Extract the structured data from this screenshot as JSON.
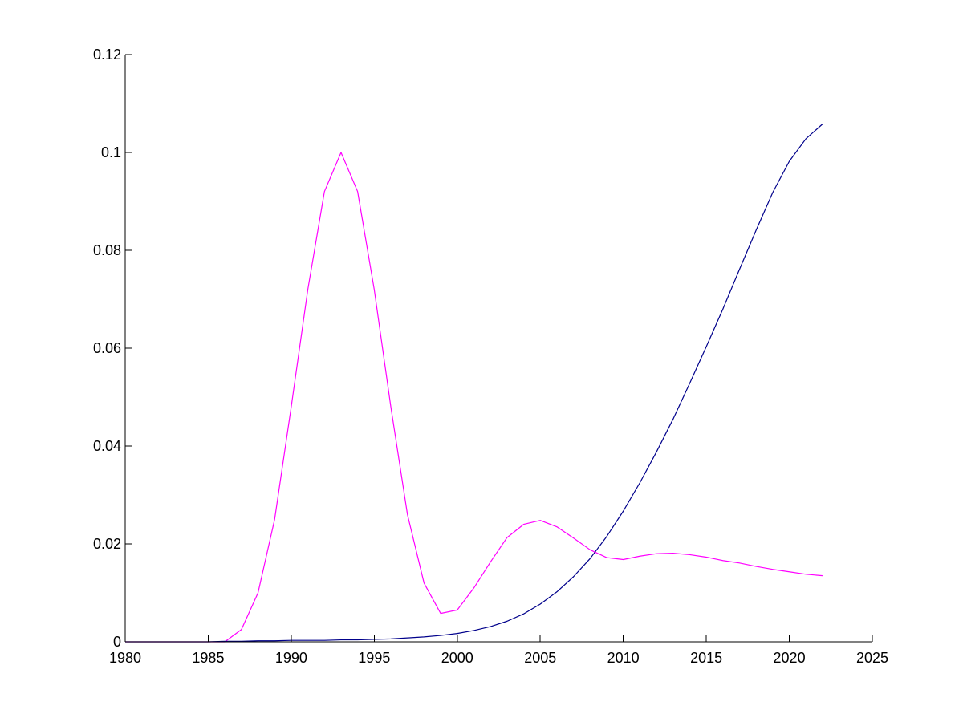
{
  "chart_data": {
    "type": "line",
    "title": "",
    "xlabel": "",
    "ylabel": "",
    "xlim": [
      1980,
      2025
    ],
    "ylim": [
      0,
      0.12
    ],
    "grid": false,
    "box": false,
    "x_ticks": [
      1980,
      1985,
      1990,
      1995,
      2000,
      2005,
      2010,
      2015,
      2020,
      2025
    ],
    "x_tick_labels": [
      "1980",
      "1985",
      "1990",
      "1995",
      "2000",
      "2005",
      "2010",
      "2015",
      "2020",
      "2025"
    ],
    "y_ticks": [
      0,
      0.02,
      0.04,
      0.06,
      0.08,
      0.1,
      0.12
    ],
    "y_tick_labels": [
      "0",
      "0.02",
      "0.04",
      "0.06",
      "0.08",
      "0.1",
      "0.12"
    ],
    "series": [
      {
        "color": "#ff00ff",
        "x": [
          1980,
          1981,
          1982,
          1983,
          1984,
          1985,
          1986,
          1987,
          1988,
          1989,
          1990,
          1991,
          1992,
          1993,
          1994,
          1995,
          1996,
          1997,
          1998,
          1999,
          2000,
          2001,
          2002,
          2003,
          2004,
          2005,
          2006,
          2007,
          2008,
          2009,
          2010,
          2011,
          2012,
          2013,
          2014,
          2015,
          2016,
          2017,
          2018,
          2019,
          2020,
          2021,
          2022
        ],
        "values": [
          0,
          0,
          0,
          0,
          0,
          0,
          0,
          0.0025,
          0.01,
          0.025,
          0.048,
          0.072,
          0.092,
          0.1,
          0.092,
          0.072,
          0.048,
          0.026,
          0.012,
          0.0058,
          0.0065,
          0.011,
          0.0163,
          0.0213,
          0.024,
          0.0248,
          0.0235,
          0.0212,
          0.0188,
          0.0172,
          0.0168,
          0.0175,
          0.018,
          0.0181,
          0.0178,
          0.0173,
          0.0166,
          0.0161,
          0.0154,
          0.0148,
          0.0143,
          0.0138,
          0.0135
        ]
      },
      {
        "color": "#00008b",
        "x": [
          1980,
          1981,
          1982,
          1983,
          1984,
          1985,
          1986,
          1987,
          1988,
          1989,
          1990,
          1991,
          1992,
          1993,
          1994,
          1995,
          1996,
          1997,
          1998,
          1999,
          2000,
          2001,
          2002,
          2003,
          2004,
          2005,
          2006,
          2007,
          2008,
          2009,
          2010,
          2011,
          2012,
          2013,
          2014,
          2015,
          2016,
          2017,
          2018,
          2019,
          2020,
          2021,
          2022
        ],
        "values": [
          0,
          0,
          0,
          0,
          0,
          0,
          0.0001,
          0.0001,
          0.0002,
          0.0002,
          0.0003,
          0.0003,
          0.0003,
          0.0004,
          0.0004,
          0.0005,
          0.0006,
          0.0008,
          0.001,
          0.0013,
          0.0017,
          0.0023,
          0.0031,
          0.0042,
          0.0057,
          0.0077,
          0.0102,
          0.0133,
          0.017,
          0.0215,
          0.0267,
          0.0325,
          0.0388,
          0.0455,
          0.0528,
          0.0603,
          0.068,
          0.0761,
          0.0841,
          0.0918,
          0.0982,
          0.1028,
          0.1058
        ]
      }
    ]
  }
}
